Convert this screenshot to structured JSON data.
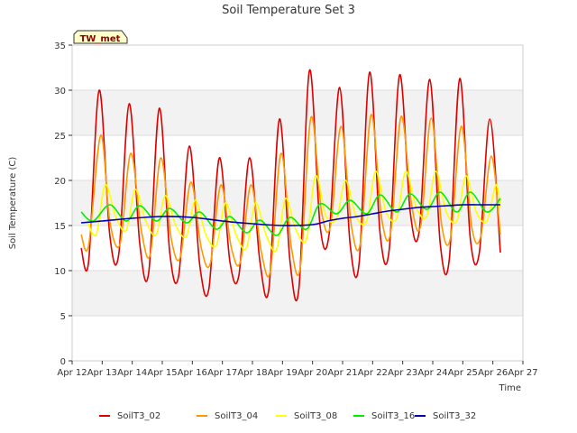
{
  "chart_data": {
    "type": "line",
    "title": "Soil Temperature Set 3",
    "xlabel": "Time",
    "ylabel": "Soil Temperature (C)",
    "xlim": [
      12,
      27
    ],
    "ylim": [
      0,
      35
    ],
    "x_ticks": [
      {
        "value": 12,
        "label": "Apr 12"
      },
      {
        "value": 13,
        "label": "Apr 13"
      },
      {
        "value": 14,
        "label": "Apr 14"
      },
      {
        "value": 15,
        "label": "Apr 15"
      },
      {
        "value": 16,
        "label": "Apr 16"
      },
      {
        "value": 17,
        "label": "Apr 17"
      },
      {
        "value": 18,
        "label": "Apr 18"
      },
      {
        "value": 19,
        "label": "Apr 19"
      },
      {
        "value": 20,
        "label": "Apr 20"
      },
      {
        "value": 21,
        "label": "Apr 21"
      },
      {
        "value": 22,
        "label": "Apr 22"
      },
      {
        "value": 23,
        "label": "Apr 23"
      },
      {
        "value": 24,
        "label": "Apr 24"
      },
      {
        "value": 25,
        "label": "Apr 25"
      },
      {
        "value": 26,
        "label": "Apr 26"
      },
      {
        "value": 27,
        "label": "Apr 27"
      }
    ],
    "y_ticks": [
      0,
      5,
      10,
      15,
      20,
      25,
      30,
      35
    ],
    "grid": true,
    "background_bands": true,
    "legend_position": "bottom",
    "annotation": "TW_met",
    "series": [
      {
        "name": "SoilT3_02",
        "color": "#dd0000",
        "x": [
          12.3,
          12.55,
          12.9,
          13.25,
          13.55,
          13.9,
          14.25,
          14.55,
          14.9,
          15.25,
          15.55,
          15.9,
          16.25,
          16.55,
          16.9,
          17.25,
          17.55,
          17.9,
          18.25,
          18.55,
          18.9,
          19.25,
          19.55,
          19.9,
          20.25,
          20.55,
          20.9,
          21.25,
          21.55,
          21.9,
          22.25,
          22.55,
          22.9,
          23.25,
          23.55,
          23.9,
          24.25,
          24.55,
          24.9,
          25.25,
          25.55,
          25.9,
          26.25
        ],
        "y": [
          12.5,
          11.0,
          30.0,
          14.0,
          11.8,
          28.5,
          13.0,
          9.8,
          28.0,
          12.0,
          9.5,
          23.8,
          10.5,
          8.0,
          22.5,
          11.0,
          9.5,
          22.5,
          11.0,
          8.0,
          26.8,
          11.0,
          8.2,
          32.2,
          15.0,
          14.0,
          30.3,
          13.0,
          10.8,
          32.0,
          14.0,
          12.3,
          31.7,
          16.5,
          14.4,
          31.2,
          13.0,
          11.2,
          31.3,
          13.5,
          12.0,
          26.8,
          12.0
        ]
      },
      {
        "name": "SoilT3_04",
        "color": "#ff9900",
        "x": [
          12.3,
          12.55,
          12.95,
          13.25,
          13.6,
          13.95,
          14.3,
          14.6,
          14.95,
          15.3,
          15.6,
          15.95,
          16.3,
          16.6,
          16.95,
          17.3,
          17.6,
          17.95,
          18.3,
          18.6,
          18.95,
          19.3,
          19.6,
          19.95,
          20.3,
          20.6,
          20.95,
          21.3,
          21.6,
          21.95,
          22.3,
          22.6,
          22.95,
          23.3,
          23.6,
          23.95,
          24.3,
          24.6,
          24.95,
          25.3,
          25.6,
          25.95,
          26.25
        ],
        "y": [
          14.0,
          12.8,
          25.0,
          15.5,
          13.0,
          23.0,
          14.5,
          11.8,
          22.5,
          13.5,
          11.5,
          19.8,
          12.5,
          10.8,
          19.5,
          12.5,
          11.0,
          19.5,
          12.0,
          10.0,
          23.0,
          12.5,
          10.5,
          27.0,
          16.5,
          15.0,
          26.0,
          14.8,
          13.2,
          27.3,
          15.8,
          14.2,
          27.1,
          17.2,
          15.0,
          26.9,
          15.0,
          13.8,
          26.0,
          14.8,
          13.8,
          22.7,
          14.0
        ]
      },
      {
        "name": "SoilT3_08",
        "color": "#ffff00",
        "x": [
          12.5,
          12.8,
          13.1,
          13.45,
          13.8,
          14.1,
          14.45,
          14.8,
          15.1,
          15.45,
          15.8,
          16.1,
          16.45,
          16.8,
          17.1,
          17.45,
          17.8,
          18.1,
          18.45,
          18.8,
          19.1,
          19.45,
          19.8,
          20.1,
          20.45,
          20.8,
          21.1,
          21.45,
          21.8,
          22.1,
          22.45,
          22.8,
          23.1,
          23.45,
          23.8,
          24.1,
          24.45,
          24.8,
          25.1,
          25.45,
          25.8,
          26.1,
          26.25
        ],
        "y": [
          15.5,
          14.0,
          19.5,
          16.0,
          14.5,
          19.0,
          15.5,
          14.0,
          18.3,
          15.0,
          13.8,
          17.8,
          14.0,
          12.8,
          17.5,
          14.0,
          12.5,
          17.5,
          14.0,
          12.3,
          18.0,
          14.5,
          13.5,
          20.5,
          16.0,
          15.8,
          20.0,
          16.0,
          15.5,
          21.0,
          16.5,
          15.8,
          21.0,
          17.0,
          16.0,
          21.0,
          16.5,
          15.5,
          20.5,
          16.5,
          15.5,
          19.5,
          17.0
        ]
      },
      {
        "name": "SoilT3_16",
        "color": "#00ee00",
        "x": [
          12.3,
          12.7,
          13.25,
          13.8,
          14.25,
          14.8,
          15.25,
          15.8,
          16.25,
          16.8,
          17.25,
          17.8,
          18.25,
          18.8,
          19.25,
          19.8,
          20.25,
          20.8,
          21.25,
          21.8,
          22.25,
          22.8,
          23.25,
          23.8,
          24.25,
          24.8,
          25.25,
          25.8,
          26.25
        ],
        "y": [
          16.5,
          15.5,
          17.3,
          15.5,
          17.2,
          15.5,
          16.9,
          15.3,
          16.5,
          14.6,
          16.0,
          14.2,
          15.6,
          13.9,
          15.9,
          14.6,
          17.4,
          16.3,
          17.8,
          16.3,
          18.4,
          16.5,
          18.5,
          16.8,
          18.7,
          16.5,
          18.7,
          16.5,
          18.0
        ]
      },
      {
        "name": "SoilT3_32",
        "color": "#0000aa",
        "x": [
          12.3,
          13.0,
          14.0,
          15.0,
          16.0,
          17.0,
          18.0,
          19.0,
          20.0,
          20.5,
          21.0,
          21.5,
          22.0,
          22.5,
          23.0,
          23.5,
          24.0,
          24.5,
          25.0,
          25.5,
          26.0,
          26.25
        ],
        "y": [
          15.3,
          15.5,
          15.8,
          16.0,
          15.9,
          15.5,
          15.2,
          15.0,
          15.1,
          15.5,
          15.8,
          16.0,
          16.3,
          16.6,
          16.8,
          17.0,
          17.1,
          17.2,
          17.3,
          17.3,
          17.3,
          17.3
        ]
      }
    ]
  }
}
